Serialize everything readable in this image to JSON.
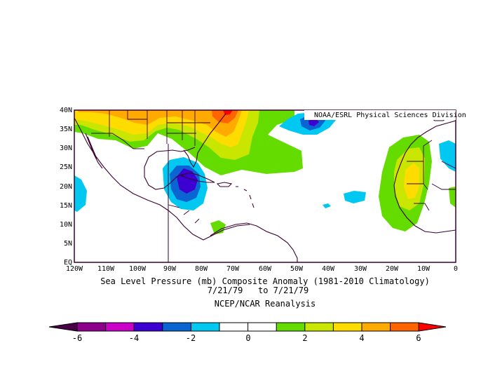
{
  "figure": {
    "credit": "NOAA/ESRL Physical Sciences Division",
    "title_line1": "Sea Level Pressure (mb) Composite Anomaly (1981-2010 Climatology)",
    "title_line2": "7/21/79   to 7/21/79",
    "title_line3": "NCEP/NCAR Reanalysis"
  },
  "axes": {
    "lat_labels": [
      "40N",
      "35N",
      "30N",
      "25N",
      "20N",
      "15N",
      "10N",
      "5N",
      "EQ"
    ],
    "lon_labels": [
      "120W",
      "110W",
      "100W",
      "90W",
      "80W",
      "70W",
      "60W",
      "50W",
      "40W",
      "30W",
      "20W",
      "10W",
      "0"
    ]
  },
  "colorbar": {
    "tick_labels": [
      "-6",
      "-4",
      "-2",
      "0",
      "2",
      "4",
      "6"
    ],
    "colors": {
      "lt_m6": "#4a0046",
      "m6_m5": "#8c008c",
      "m5_m4": "#c800c8",
      "m4_m3": "#3c00d2",
      "m3_m2": "#0a64d2",
      "m2_m1": "#00c8f0",
      "m1_0": "#ffffff",
      "0_1": "#ffffff",
      "1_2": "#64dc00",
      "2_3": "#c8e600",
      "3_4": "#ffdc00",
      "4_5": "#ffaa00",
      "5_6": "#ff6400",
      "gt_6": "#ff0000"
    }
  }
}
